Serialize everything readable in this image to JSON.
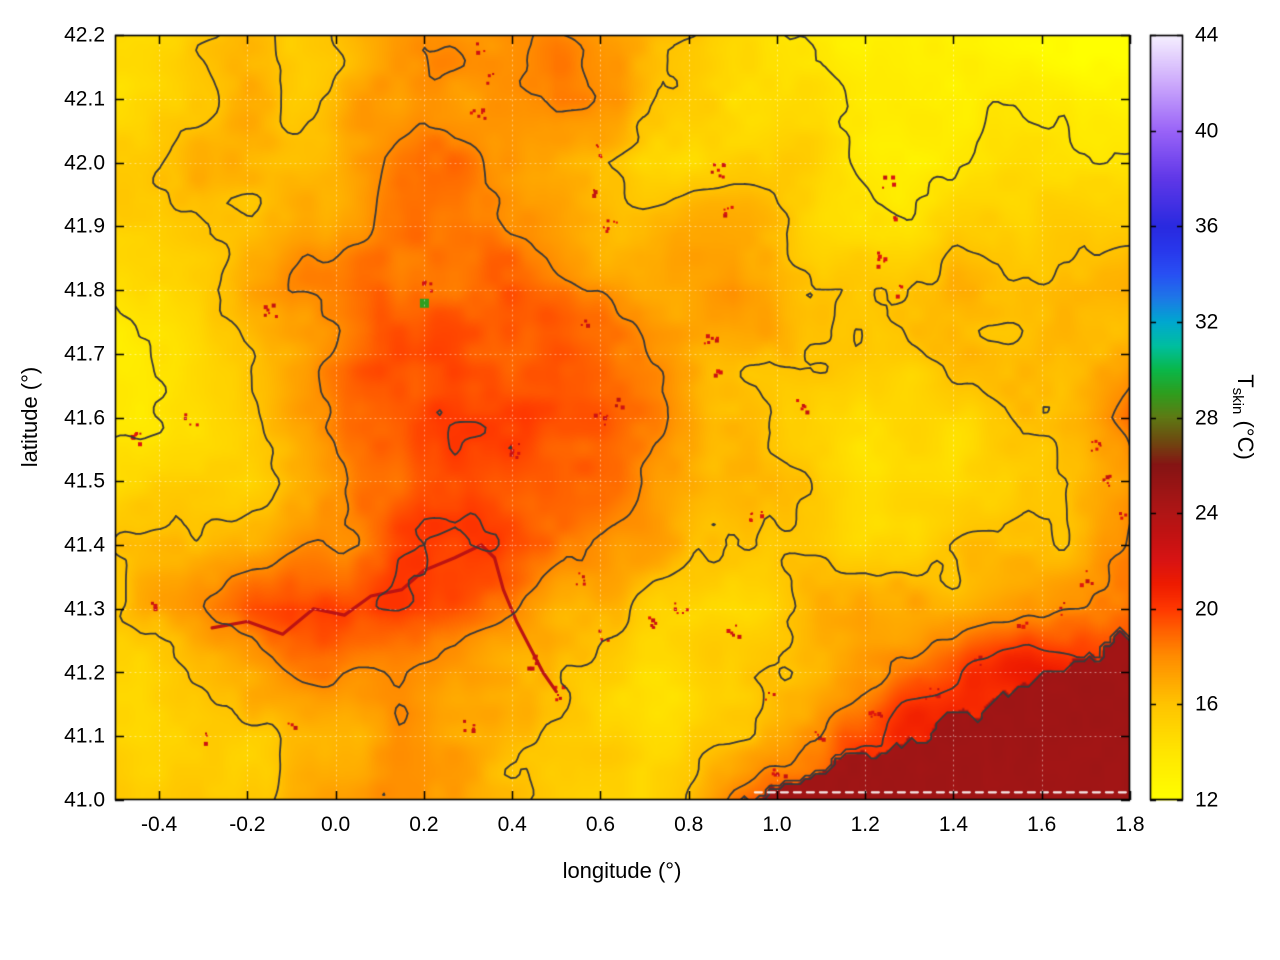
{
  "chart_data": {
    "type": "heatmap",
    "title": "",
    "xlabel": "longitude (°)",
    "ylabel": "latitude (°)",
    "colorbar_label": "T_skin (°C)",
    "colorbar_label_parts": {
      "prefix": "T",
      "sub": "skin",
      "suffix": " (°C)"
    },
    "xlim": [
      -0.5,
      1.8
    ],
    "ylim": [
      41.0,
      42.2
    ],
    "clim": [
      12,
      44
    ],
    "x_ticks": {
      "values": [
        -0.4,
        -0.2,
        0.0,
        0.2,
        0.4,
        0.6,
        0.8,
        1.0,
        1.2,
        1.4,
        1.6,
        1.8
      ],
      "labels": [
        "-0.4",
        "-0.2",
        "0.0",
        "0.2",
        "0.4",
        "0.6",
        "0.8",
        "1.0",
        "1.2",
        "1.4",
        "1.6",
        "1.8"
      ]
    },
    "y_ticks": {
      "values": [
        41.0,
        41.1,
        41.2,
        41.3,
        41.4,
        41.5,
        41.6,
        41.7,
        41.8,
        41.9,
        42.0,
        42.1,
        42.2
      ],
      "labels": [
        "41.0",
        "41.1",
        "41.2",
        "41.3",
        "41.4",
        "41.5",
        "41.6",
        "41.7",
        "41.8",
        "41.9",
        "42.0",
        "42.1",
        "42.2"
      ]
    },
    "colorbar_ticks": {
      "values": [
        12,
        16,
        20,
        24,
        28,
        32,
        36,
        40,
        44
      ],
      "labels": [
        "12",
        "16",
        "20",
        "24",
        "28",
        "32",
        "36",
        "40",
        "44"
      ]
    },
    "palette": [
      [
        12,
        "#ffff00"
      ],
      [
        14,
        "#ffe600"
      ],
      [
        16,
        "#ffc400"
      ],
      [
        17,
        "#ffa800"
      ],
      [
        18,
        "#ff8c00"
      ],
      [
        19,
        "#ff6400"
      ],
      [
        20,
        "#ff3800"
      ],
      [
        21,
        "#ef1c00"
      ],
      [
        22,
        "#d91414"
      ],
      [
        23,
        "#c41212"
      ],
      [
        24,
        "#b01616"
      ],
      [
        25,
        "#9c1515"
      ],
      [
        26,
        "#861414"
      ],
      [
        27,
        "#6e4a10"
      ],
      [
        28,
        "#5e7a14"
      ],
      [
        29,
        "#2f9e1e"
      ],
      [
        30,
        "#0ab84a"
      ],
      [
        31,
        "#00bfa0"
      ],
      [
        32,
        "#00a8d0"
      ],
      [
        33,
        "#1e78e8"
      ],
      [
        34,
        "#2850f4"
      ],
      [
        35,
        "#2838ec"
      ],
      [
        36,
        "#2a2ae0"
      ],
      [
        38,
        "#6038e8"
      ],
      [
        40,
        "#9a64f8"
      ],
      [
        42,
        "#cdaafc"
      ],
      [
        44,
        "#f6f0ff"
      ]
    ],
    "contour": {
      "levels": [
        14,
        16,
        18,
        20,
        24
      ],
      "color": "#3a3a3a",
      "width": 1.8
    },
    "grid_lines": {
      "color": "rgba(255,255,255,0.5)",
      "dash": [
        1,
        4
      ]
    },
    "axis_color": "#000000",
    "grid": {
      "note": "approximate T_skin field (°C); rows top lat 42.2 -> bottom lat 41.0, cols lon -0.5 -> 1.8",
      "values": [
        [
          15.5,
          15.5,
          16,
          16.5,
          16,
          16.5,
          17,
          17,
          16.5,
          17,
          17.5,
          17,
          16,
          15,
          14,
          13.5,
          13,
          13,
          12.6,
          12.6,
          13,
          13,
          12.5,
          12.4
        ],
        [
          15,
          16,
          16.5,
          17,
          16.5,
          16,
          17,
          17.5,
          17,
          17,
          18,
          17.5,
          16,
          14.5,
          13.5,
          14,
          14,
          13,
          12.8,
          12.8,
          13,
          13,
          12.8,
          12.6
        ],
        [
          15,
          16,
          17,
          17,
          17,
          16.5,
          17,
          18,
          18,
          17.5,
          16.5,
          15.5,
          14.5,
          14.5,
          15,
          15,
          14.5,
          13.5,
          13,
          13,
          13.4,
          13.5,
          13,
          13
        ],
        [
          14.5,
          15,
          16,
          17,
          17.5,
          17,
          17.5,
          18,
          18.5,
          18,
          17,
          16,
          15.5,
          16,
          16,
          15.5,
          14.5,
          14,
          14,
          14.5,
          14.5,
          14.2,
          14.2,
          14.5
        ],
        [
          15,
          15,
          16,
          17,
          18,
          18,
          18.5,
          18,
          18,
          18.5,
          18,
          17.5,
          16.5,
          16.5,
          17,
          16,
          15.5,
          15,
          15.5,
          16,
          16,
          15.7,
          15.7,
          16
        ],
        [
          14.5,
          15,
          15.5,
          16,
          17,
          18,
          19,
          19,
          18.5,
          18,
          18.5,
          18,
          17.5,
          17,
          16.5,
          16,
          15.5,
          15,
          15,
          16,
          16,
          16,
          16.2,
          16.5
        ],
        [
          14,
          14.5,
          15,
          16,
          17,
          17.5,
          18.5,
          19,
          19.2,
          19.5,
          19.3,
          19,
          18.5,
          18,
          17,
          16,
          15,
          14.5,
          14.2,
          14.6,
          15.2,
          16,
          17.2,
          19
        ],
        [
          14.5,
          15,
          15,
          15.5,
          16.5,
          17,
          18,
          19,
          19.5,
          19.5,
          19.2,
          19,
          18.5,
          18,
          17.5,
          17,
          16,
          15,
          14.5,
          14.2,
          14.6,
          15.5,
          16.5,
          17.5
        ],
        [
          16,
          16.5,
          17,
          17.2,
          17.6,
          18,
          19,
          19.8,
          19.8,
          19.5,
          19,
          18.5,
          18,
          17.6,
          17.5,
          17,
          16.5,
          16,
          15.5,
          15,
          15.2,
          16,
          17,
          18.5
        ],
        [
          16.5,
          17,
          18,
          19,
          20,
          20.5,
          20.5,
          20,
          19,
          18,
          17,
          16.5,
          16,
          15.5,
          15.2,
          15.5,
          16,
          16.5,
          16,
          16,
          16.5,
          17.2,
          18.5,
          19.5
        ],
        [
          15.5,
          16,
          16.5,
          17,
          18,
          19,
          19,
          18.5,
          18,
          17,
          16,
          15.5,
          15,
          15,
          15.5,
          16,
          16.5,
          17,
          18,
          19,
          20,
          21,
          21,
          21
        ],
        [
          15,
          15.5,
          16,
          16,
          16.5,
          17,
          17.5,
          17.5,
          17,
          16.5,
          16,
          15.5,
          15.5,
          16,
          16.5,
          17.5,
          19,
          20,
          21,
          21,
          21,
          21,
          21,
          21
        ],
        [
          15.5,
          16,
          16,
          16.5,
          17,
          17.5,
          17.5,
          17,
          16.5,
          16,
          15.5,
          15.5,
          16,
          17.5,
          19.5,
          20.5,
          21,
          21,
          21,
          21,
          21,
          21,
          21,
          21
        ]
      ]
    },
    "texture": {
      "octaves": [
        [
          7,
          5,
          1.1
        ],
        [
          20,
          14,
          0.6
        ],
        [
          55,
          40,
          0.3
        ]
      ],
      "sea_damp": 0.08
    },
    "sea": {
      "temp": 24.8,
      "coast_start_lon": 0.95,
      "coast_slope": 0.294,
      "gap_dash_lat": 41.012
    },
    "hotspots": {
      "temp": 22.3,
      "points": [
        [
          0.33,
          42.18
        ],
        [
          0.34,
          42.13
        ],
        [
          0.32,
          42.08
        ],
        [
          0.6,
          42.02
        ],
        [
          0.58,
          41.96
        ],
        [
          0.62,
          41.9
        ],
        [
          0.86,
          41.99
        ],
        [
          0.88,
          41.93
        ],
        [
          1.25,
          41.97
        ],
        [
          1.26,
          41.91
        ],
        [
          1.24,
          41.85
        ],
        [
          1.28,
          41.8
        ],
        [
          0.63,
          41.62,
          22.8
        ],
        [
          0.6,
          41.6
        ],
        [
          0.85,
          41.72
        ],
        [
          0.87,
          41.67
        ],
        [
          0.2,
          41.81
        ],
        [
          -0.15,
          41.77
        ],
        [
          -0.33,
          41.6
        ],
        [
          -0.45,
          41.57
        ],
        [
          1.72,
          41.56
        ],
        [
          1.75,
          41.5
        ],
        [
          1.78,
          41.45
        ],
        [
          1.7,
          41.35
        ],
        [
          1.65,
          41.3
        ],
        [
          1.55,
          41.28
        ],
        [
          1.45,
          41.22
        ],
        [
          1.35,
          41.17
        ],
        [
          1.22,
          41.13
        ],
        [
          1.1,
          41.1
        ],
        [
          1.0,
          41.05
        ],
        [
          0.98,
          41.17
        ],
        [
          0.9,
          41.27
        ],
        [
          0.78,
          41.3
        ],
        [
          0.72,
          41.28
        ],
        [
          0.6,
          41.26
        ],
        [
          0.45,
          41.22
        ],
        [
          0.5,
          41.17
        ],
        [
          0.3,
          41.12
        ],
        [
          -0.1,
          41.12
        ],
        [
          -0.3,
          41.1
        ],
        [
          -0.42,
          41.3
        ],
        [
          0.55,
          41.35
        ],
        [
          0.57,
          41.75
        ],
        [
          0.4,
          41.55
        ],
        [
          1.05,
          41.62
        ],
        [
          0.95,
          41.45
        ]
      ]
    },
    "river": {
      "temp": 23.4,
      "points": [
        [
          -0.28,
          41.27
        ],
        [
          -0.2,
          41.28
        ],
        [
          -0.12,
          41.26
        ],
        [
          -0.05,
          41.3
        ],
        [
          0.02,
          41.29
        ],
        [
          0.08,
          41.32
        ],
        [
          0.15,
          41.33
        ],
        [
          0.2,
          41.36
        ],
        [
          0.27,
          41.38
        ],
        [
          0.33,
          41.4
        ],
        [
          0.36,
          41.38
        ],
        [
          0.38,
          41.33
        ],
        [
          0.41,
          41.28
        ],
        [
          0.44,
          41.24
        ],
        [
          0.47,
          41.2
        ],
        [
          0.5,
          41.17
        ]
      ]
    },
    "green_spot": {
      "lon": 0.2,
      "lat": 41.78,
      "temp": 29
    }
  }
}
